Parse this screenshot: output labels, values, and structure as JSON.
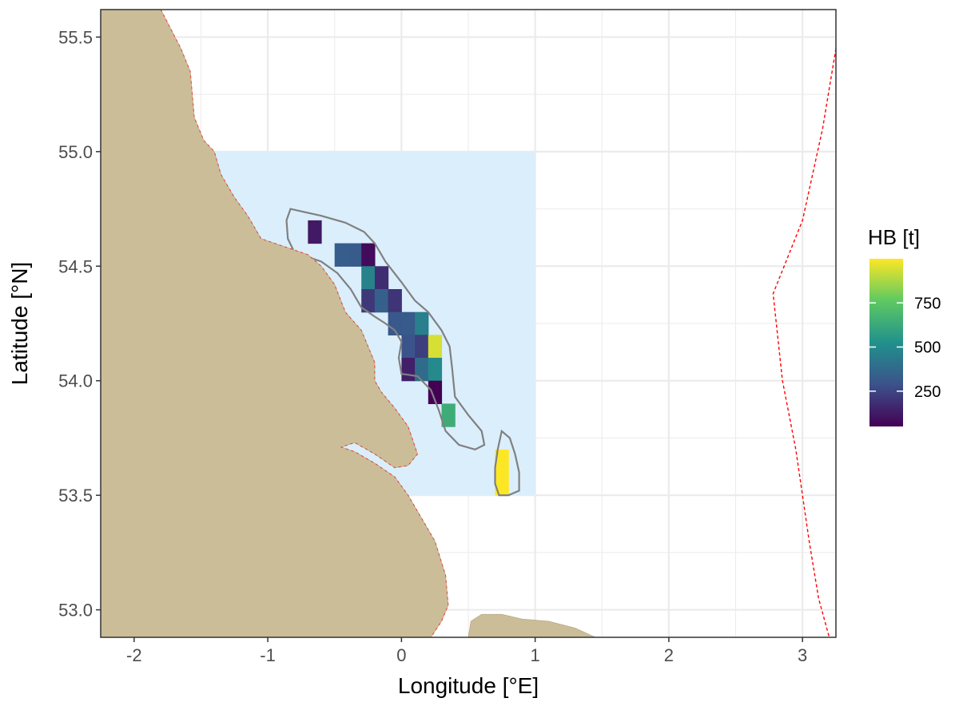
{
  "chart_data": {
    "type": "heatmap",
    "xlabel": "Longitude  [°E]",
    "ylabel": "Latitude  [°N]",
    "xlim": [
      -2.25,
      3.25
    ],
    "ylim": [
      52.88,
      55.62
    ],
    "x_ticks": [
      -2,
      -1,
      0,
      1,
      2,
      3
    ],
    "x_tick_labels": [
      "-2",
      "-1",
      "0",
      "1",
      "2",
      "3"
    ],
    "y_ticks": [
      53.0,
      53.5,
      54.0,
      54.5,
      55.0,
      55.5
    ],
    "y_tick_labels": [
      "53.0",
      "53.5",
      "54.0",
      "54.5",
      "55.0",
      "55.5"
    ],
    "grid": true,
    "study_area": {
      "lon": [
        -1.4,
        1.0
      ],
      "lat": [
        53.5,
        55.0
      ],
      "color": "#dbeefc"
    },
    "cell_size": {
      "lon": 0.1,
      "lat": 0.1
    },
    "cells": [
      {
        "lon": -0.65,
        "lat": 54.65,
        "value": 120
      },
      {
        "lon": -0.45,
        "lat": 54.55,
        "value": 330
      },
      {
        "lon": -0.35,
        "lat": 54.55,
        "value": 320
      },
      {
        "lon": -0.25,
        "lat": 54.55,
        "value": 80
      },
      {
        "lon": -0.25,
        "lat": 54.45,
        "value": 470
      },
      {
        "lon": -0.15,
        "lat": 54.45,
        "value": 180
      },
      {
        "lon": -0.25,
        "lat": 54.35,
        "value": 210
      },
      {
        "lon": -0.15,
        "lat": 54.35,
        "value": 340
      },
      {
        "lon": -0.05,
        "lat": 54.35,
        "value": 200
      },
      {
        "lon": -0.05,
        "lat": 54.25,
        "value": 310
      },
      {
        "lon": 0.05,
        "lat": 54.25,
        "value": 320
      },
      {
        "lon": 0.15,
        "lat": 54.25,
        "value": 460
      },
      {
        "lon": 0.05,
        "lat": 54.15,
        "value": 290
      },
      {
        "lon": 0.15,
        "lat": 54.15,
        "value": 230
      },
      {
        "lon": 0.25,
        "lat": 54.15,
        "value": 940
      },
      {
        "lon": 0.05,
        "lat": 54.05,
        "value": 140
      },
      {
        "lon": 0.15,
        "lat": 54.05,
        "value": 380
      },
      {
        "lon": 0.25,
        "lat": 54.05,
        "value": 500
      },
      {
        "lon": 0.25,
        "lat": 53.95,
        "value": 50
      },
      {
        "lon": 0.35,
        "lat": 53.85,
        "value": 640
      },
      {
        "lon": 0.75,
        "lat": 53.65,
        "value": 1000
      },
      {
        "lon": 0.75,
        "lat": 53.55,
        "value": 1000
      }
    ],
    "outline_main": [
      [
        -0.83,
        54.75
      ],
      [
        -0.6,
        54.72
      ],
      [
        -0.42,
        54.69
      ],
      [
        -0.28,
        54.65
      ],
      [
        -0.2,
        54.6
      ],
      [
        -0.12,
        54.52
      ],
      [
        0.0,
        54.43
      ],
      [
        0.1,
        54.35
      ],
      [
        0.2,
        54.3
      ],
      [
        0.3,
        54.22
      ],
      [
        0.36,
        54.15
      ],
      [
        0.38,
        54.05
      ],
      [
        0.4,
        53.93
      ],
      [
        0.5,
        53.85
      ],
      [
        0.6,
        53.78
      ],
      [
        0.62,
        53.72
      ],
      [
        0.55,
        53.7
      ],
      [
        0.43,
        53.72
      ],
      [
        0.33,
        53.78
      ],
      [
        0.28,
        53.87
      ],
      [
        0.22,
        53.96
      ],
      [
        0.12,
        54.02
      ],
      [
        0.0,
        54.03
      ],
      [
        -0.02,
        54.1
      ],
      [
        0.0,
        54.17
      ],
      [
        -0.05,
        54.22
      ],
      [
        -0.12,
        54.25
      ],
      [
        -0.2,
        54.28
      ],
      [
        -0.3,
        54.32
      ],
      [
        -0.38,
        54.4
      ],
      [
        -0.48,
        54.47
      ],
      [
        -0.6,
        54.52
      ],
      [
        -0.8,
        54.56
      ],
      [
        -0.85,
        54.62
      ],
      [
        -0.86,
        54.7
      ]
    ],
    "outline_small": [
      [
        0.75,
        53.78
      ],
      [
        0.81,
        53.75
      ],
      [
        0.85,
        53.68
      ],
      [
        0.88,
        53.6
      ],
      [
        0.88,
        53.52
      ],
      [
        0.8,
        53.5
      ],
      [
        0.73,
        53.5
      ],
      [
        0.7,
        53.55
      ],
      [
        0.7,
        53.62
      ],
      [
        0.72,
        53.7
      ]
    ],
    "land_main": [
      [
        -2.25,
        52.88
      ],
      [
        -2.25,
        55.62
      ],
      [
        -1.8,
        55.62
      ],
      [
        -1.65,
        55.45
      ],
      [
        -1.58,
        55.35
      ],
      [
        -1.55,
        55.15
      ],
      [
        -1.48,
        55.05
      ],
      [
        -1.4,
        55.0
      ],
      [
        -1.35,
        54.9
      ],
      [
        -1.25,
        54.8
      ],
      [
        -1.15,
        54.72
      ],
      [
        -1.05,
        54.62
      ],
      [
        -0.95,
        54.6
      ],
      [
        -0.85,
        54.58
      ],
      [
        -0.7,
        54.55
      ],
      [
        -0.6,
        54.5
      ],
      [
        -0.5,
        54.42
      ],
      [
        -0.42,
        54.3
      ],
      [
        -0.3,
        54.22
      ],
      [
        -0.25,
        54.15
      ],
      [
        -0.2,
        54.08
      ],
      [
        -0.2,
        54.0
      ],
      [
        -0.15,
        53.95
      ],
      [
        -0.05,
        53.88
      ],
      [
        0.05,
        53.8
      ],
      [
        0.12,
        53.68
      ],
      [
        0.05,
        53.63
      ],
      [
        -0.05,
        53.62
      ],
      [
        -0.2,
        53.68
      ],
      [
        -0.35,
        53.73
      ],
      [
        -0.45,
        53.71
      ],
      [
        -0.35,
        53.69
      ],
      [
        -0.2,
        53.64
      ],
      [
        -0.05,
        53.58
      ],
      [
        0.05,
        53.5
      ],
      [
        0.15,
        53.4
      ],
      [
        0.25,
        53.3
      ],
      [
        0.33,
        53.15
      ],
      [
        0.35,
        53.02
      ],
      [
        0.3,
        52.95
      ],
      [
        0.22,
        52.88
      ]
    ],
    "land_south": [
      [
        0.5,
        52.88
      ],
      [
        0.52,
        52.95
      ],
      [
        0.6,
        52.98
      ],
      [
        0.75,
        52.98
      ],
      [
        0.9,
        52.96
      ],
      [
        1.1,
        52.95
      ],
      [
        1.3,
        52.92
      ],
      [
        1.45,
        52.88
      ]
    ],
    "boundary_line": [
      [
        3.25,
        55.45
      ],
      [
        3.15,
        55.1
      ],
      [
        3.0,
        54.7
      ],
      [
        2.78,
        54.38
      ],
      [
        2.85,
        54.0
      ],
      [
        2.95,
        53.7
      ],
      [
        3.05,
        53.3
      ],
      [
        3.12,
        53.05
      ],
      [
        3.2,
        52.88
      ]
    ],
    "colorbar": {
      "title": "HB [t]",
      "min": 50,
      "max": 1000,
      "ticks": [
        250,
        500,
        750
      ],
      "tick_labels": [
        "250",
        "500",
        "750"
      ],
      "colors": [
        "#440154",
        "#3b528b",
        "#21918c",
        "#5ec962",
        "#fde725"
      ]
    },
    "colors": {
      "land": "#ccbd99",
      "grid": "#ebebeb",
      "outline": "#808080",
      "boundary": "#ff0000",
      "panel_border": "#333333"
    }
  }
}
